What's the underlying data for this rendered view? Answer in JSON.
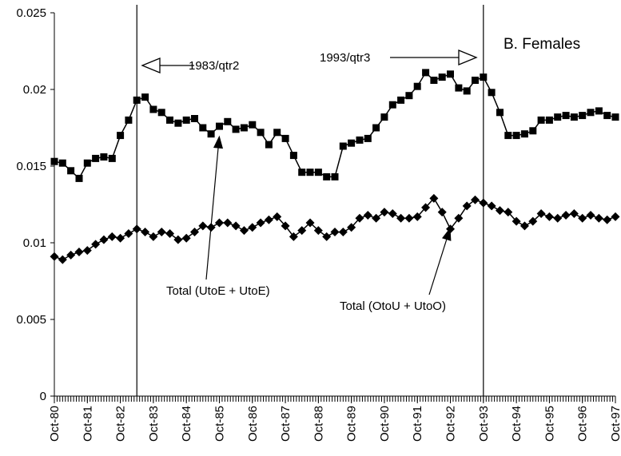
{
  "chart_data": {
    "type": "line",
    "title": "B. Females",
    "xlabel": "",
    "ylabel": "",
    "ylim": [
      0,
      0.025
    ],
    "y_ticks": [
      "0",
      "0.005",
      "0.01",
      "0.015",
      "0.02",
      "0.025"
    ],
    "x_range": [
      1980.75,
      1997.75
    ],
    "x_tick_labels": [
      "Oct-80",
      "Oct-81",
      "Oct-82",
      "Oct-83",
      "Oct-84",
      "Oct-85",
      "Oct-86",
      "Oct-87",
      "Oct-88",
      "Oct-89",
      "Oct-90",
      "Oct-91",
      "Oct-92",
      "Oct-93",
      "Oct-94",
      "Oct-95",
      "Oct-96",
      "Oct-97"
    ],
    "grid": false,
    "series": [
      {
        "name": "Total (UtoE + UtoE)",
        "marker": "square",
        "x": [
          1980.75,
          1981.0,
          1981.25,
          1981.5,
          1981.75,
          1982.0,
          1982.25,
          1982.5,
          1982.75,
          1983.0,
          1983.25,
          1983.5,
          1983.75,
          1984.0,
          1984.25,
          1984.5,
          1984.75,
          1985.0,
          1985.25,
          1985.5,
          1985.75,
          1986.0,
          1986.25,
          1986.5,
          1986.75,
          1987.0,
          1987.25,
          1987.5,
          1987.75,
          1988.0,
          1988.25,
          1988.5,
          1988.75,
          1989.0,
          1989.25,
          1989.5,
          1989.75,
          1990.0,
          1990.25,
          1990.5,
          1990.75,
          1991.0,
          1991.25,
          1991.5,
          1991.75,
          1992.0,
          1992.25,
          1992.5,
          1992.75,
          1993.0,
          1993.25,
          1993.5,
          1993.75,
          1994.0,
          1994.25,
          1994.5,
          1994.75,
          1995.0,
          1995.25,
          1995.5,
          1995.75,
          1996.0,
          1996.25,
          1996.5,
          1996.75,
          1997.0,
          1997.25,
          1997.5,
          1997.75
        ],
        "values": [
          0.0153,
          0.0152,
          0.0147,
          0.0142,
          0.0152,
          0.0155,
          0.0156,
          0.0155,
          0.017,
          0.018,
          0.0193,
          0.0195,
          0.0187,
          0.0185,
          0.018,
          0.0178,
          0.018,
          0.0181,
          0.0175,
          0.0171,
          0.0176,
          0.0179,
          0.0174,
          0.0175,
          0.0177,
          0.0172,
          0.0164,
          0.0172,
          0.0168,
          0.0157,
          0.0146,
          0.0146,
          0.0146,
          0.0143,
          0.0143,
          0.0163,
          0.0165,
          0.0167,
          0.0168,
          0.0175,
          0.0182,
          0.019,
          0.0193,
          0.0196,
          0.0202,
          0.0211,
          0.0206,
          0.0208,
          0.021,
          0.0201,
          0.0199,
          0.0206,
          0.0208,
          0.0198,
          0.0185,
          0.017,
          0.017,
          0.0171,
          0.0173,
          0.018,
          0.018,
          0.0182,
          0.0183,
          0.0182,
          0.0183,
          0.0185,
          0.0186,
          0.0183,
          0.0182
        ]
      },
      {
        "name": "Total (OtoU + UtoO)",
        "marker": "diamond",
        "x": [
          1980.75,
          1981.0,
          1981.25,
          1981.5,
          1981.75,
          1982.0,
          1982.25,
          1982.5,
          1982.75,
          1983.0,
          1983.25,
          1983.5,
          1983.75,
          1984.0,
          1984.25,
          1984.5,
          1984.75,
          1985.0,
          1985.25,
          1985.5,
          1985.75,
          1986.0,
          1986.25,
          1986.5,
          1986.75,
          1987.0,
          1987.25,
          1987.5,
          1987.75,
          1988.0,
          1988.25,
          1988.5,
          1988.75,
          1989.0,
          1989.25,
          1989.5,
          1989.75,
          1990.0,
          1990.25,
          1990.5,
          1990.75,
          1991.0,
          1991.25,
          1991.5,
          1991.75,
          1992.0,
          1992.25,
          1992.5,
          1992.75,
          1993.0,
          1993.25,
          1993.5,
          1993.75,
          1994.0,
          1994.25,
          1994.5,
          1994.75,
          1995.0,
          1995.25,
          1995.5,
          1995.75,
          1996.0,
          1996.25,
          1996.5,
          1996.75,
          1997.0,
          1997.25,
          1997.5,
          1997.75
        ],
        "values": [
          0.0091,
          0.0089,
          0.0092,
          0.0094,
          0.0095,
          0.0099,
          0.0102,
          0.0104,
          0.0103,
          0.0106,
          0.0109,
          0.0107,
          0.0104,
          0.0107,
          0.0106,
          0.0102,
          0.0103,
          0.0107,
          0.0111,
          0.011,
          0.0113,
          0.0113,
          0.0111,
          0.0108,
          0.011,
          0.0113,
          0.0115,
          0.0117,
          0.0111,
          0.0104,
          0.0108,
          0.0113,
          0.0108,
          0.0104,
          0.0107,
          0.0107,
          0.011,
          0.0116,
          0.0118,
          0.0116,
          0.012,
          0.0119,
          0.0116,
          0.0116,
          0.0117,
          0.0123,
          0.0129,
          0.012,
          0.0109,
          0.0116,
          0.0124,
          0.0128,
          0.0126,
          0.0124,
          0.0121,
          0.012,
          0.0114,
          0.0111,
          0.0114,
          0.0119,
          0.0117,
          0.0116,
          0.0118,
          0.0119,
          0.0116,
          0.0118,
          0.0116,
          0.0115,
          0.0117
        ]
      }
    ],
    "reference_lines": [
      {
        "x": 1983.25,
        "label": "1983/qtr2",
        "arrow": "points-left"
      },
      {
        "x": 1993.75,
        "label": "1993/qtr3",
        "arrow": "points-right"
      }
    ],
    "annotations": [
      {
        "text": "Total (UtoE + UtoE)",
        "points_to": {
          "x": 1985.75,
          "y": 0.017
        }
      },
      {
        "text": "Total (OtoU + UtoO)",
        "points_to": {
          "x": 1992.75,
          "y": 0.011
        }
      }
    ]
  }
}
